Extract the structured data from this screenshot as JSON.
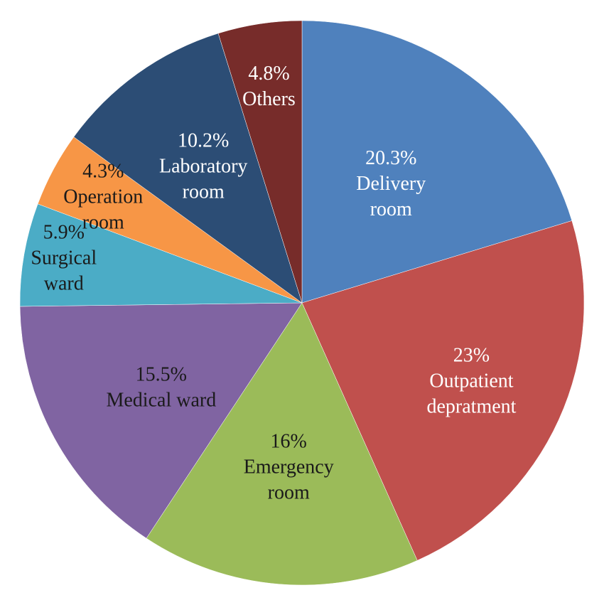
{
  "chart_data": {
    "type": "pie",
    "start_angle_deg": 90,
    "direction": "clockwise",
    "slices": [
      {
        "name": "Delivery room",
        "value": 20.3,
        "value_label": "20.3%",
        "label_lines": [
          "Delivery",
          "room"
        ],
        "color": "#4F81BD",
        "text_color": "#ffffff"
      },
      {
        "name": "Outpatient depratment",
        "value": 23,
        "value_label": "23%",
        "label_lines": [
          "Outpatient",
          "depratment"
        ],
        "color": "#C0504D",
        "text_color": "#ffffff"
      },
      {
        "name": "Emergency room",
        "value": 16,
        "value_label": "16%",
        "label_lines": [
          "Emergency",
          "room"
        ],
        "color": "#9BBB59",
        "text_color": "#1a1a1a"
      },
      {
        "name": "Medical ward",
        "value": 15.5,
        "value_label": "15.5%",
        "label_lines": [
          "Medical ward"
        ],
        "color": "#8064A2",
        "text_color": "#1a1a1a"
      },
      {
        "name": "Surgical ward",
        "value": 5.9,
        "value_label": "5.9%",
        "label_lines": [
          "Surgical",
          "ward"
        ],
        "color": "#4BACC6",
        "text_color": "#1a1a1a"
      },
      {
        "name": "Operation room",
        "value": 4.3,
        "value_label": "4.3%",
        "label_lines": [
          "Operation",
          "room"
        ],
        "color": "#F79646",
        "text_color": "#1a1a1a"
      },
      {
        "name": "Laboratory room",
        "value": 10.2,
        "value_label": "10.2%",
        "label_lines": [
          "Laboratory",
          "room"
        ],
        "color": "#2C4D75",
        "text_color": "#ffffff"
      },
      {
        "name": "Others",
        "value": 4.8,
        "value_label": "4.8%",
        "label_lines": [
          "Others"
        ],
        "color": "#772C2A",
        "text_color": "#ffffff"
      }
    ]
  }
}
